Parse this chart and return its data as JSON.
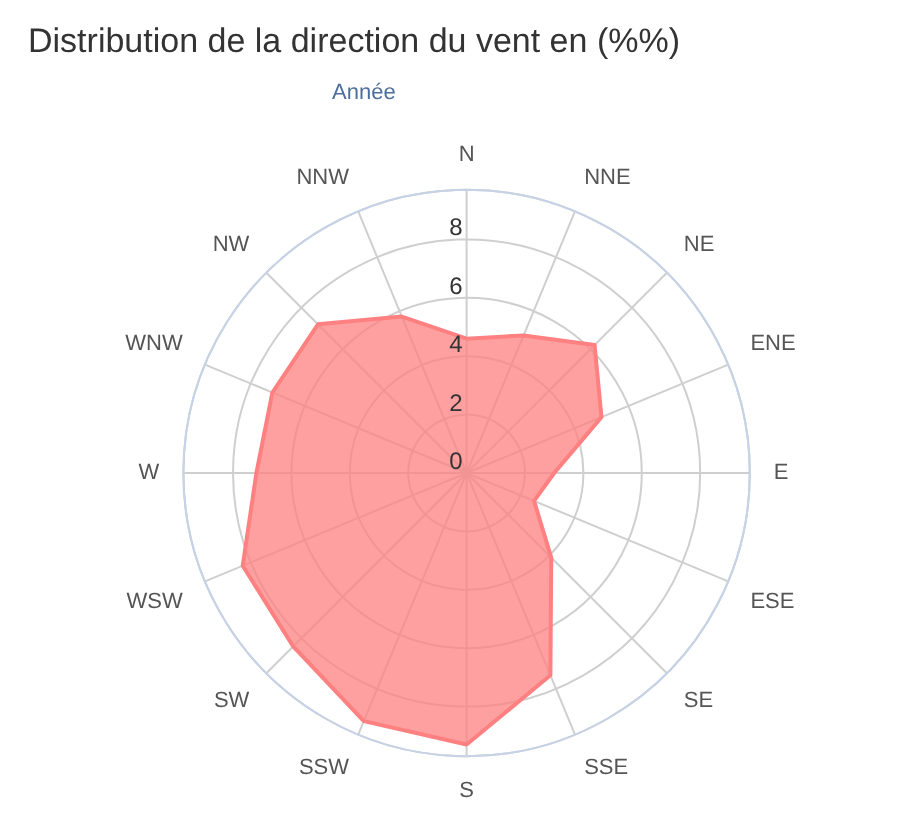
{
  "chart_data": {
    "type": "radar",
    "title": "Distribution de la direction du vent en (%%)",
    "subtitle": "Année",
    "categories": [
      "N",
      "NNE",
      "NE",
      "ENE",
      "E",
      "ESE",
      "SE",
      "SSE",
      "S",
      "SSW",
      "SW",
      "WSW",
      "W",
      "WNW",
      "NW",
      "NNW"
    ],
    "series": [
      {
        "color": "#ff8080",
        "values": [
          4.6,
          5.1,
          6.2,
          5.0,
          3.0,
          2.5,
          4.1,
          7.5,
          9.3,
          9.2,
          8.4,
          8.3,
          7.2,
          7.2,
          7.2,
          5.8
        ]
      }
    ],
    "ylim": [
      0,
      9.7
    ],
    "yticks": [
      0,
      2,
      4,
      6,
      8
    ],
    "grid": true,
    "marker": "none"
  }
}
